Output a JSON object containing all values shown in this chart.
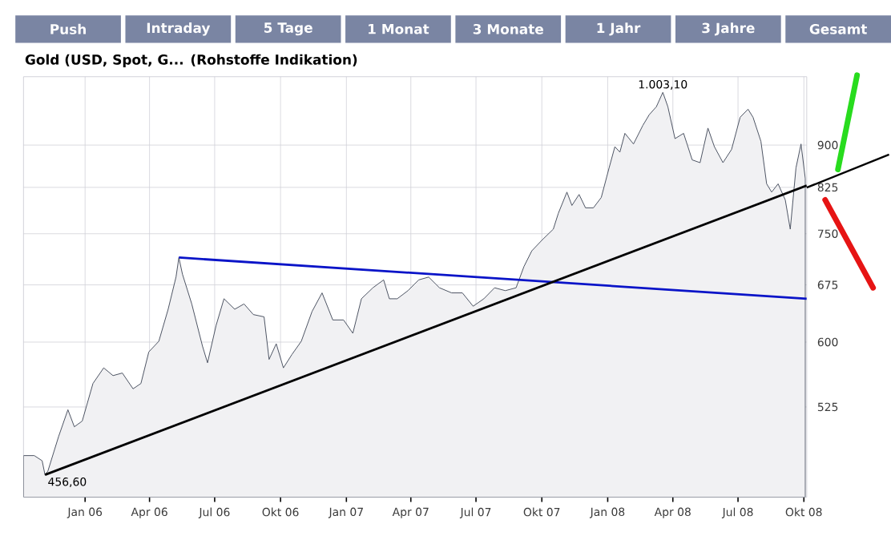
{
  "chart_data": {
    "type": "area",
    "title": "Gold (USD, Spot, G... (Rohstoffe Indikation)",
    "annotations": [
      "Push",
      "Intraday",
      "5 Tage",
      "1 Monat",
      "3 Monate",
      "1 Jahr",
      "3 Jahre",
      "Gesamt",
      {
        "text": "1.003,10",
        "x": "2008-03-18",
        "y": 1003.1
      },
      {
        "text": "456,60",
        "x": "2005-11-06",
        "y": 456.6
      }
    ],
    "log": "y",
    "grid": true,
    "xlim": [
      "2005-10-07",
      "2008-10-05"
    ],
    "ylim": [
      436,
      1036
    ],
    "xticks": [
      {
        "value": "2006-01-01",
        "label": "Jan 06"
      },
      {
        "value": "2006-04-01",
        "label": "Apr 06"
      },
      {
        "value": "2006-07-01",
        "label": "Jul 06"
      },
      {
        "value": "2006-10-01",
        "label": "Okt 06"
      },
      {
        "value": "2007-01-01",
        "label": "Jan 07"
      },
      {
        "value": "2007-04-01",
        "label": "Apr 07"
      },
      {
        "value": "2007-07-01",
        "label": "Jul 07"
      },
      {
        "value": "2007-10-01",
        "label": "Okt 07"
      },
      {
        "value": "2008-01-01",
        "label": "Jan 08"
      },
      {
        "value": "2008-04-01",
        "label": "Apr 08"
      },
      {
        "value": "2008-07-01",
        "label": "Jul 08"
      },
      {
        "value": "2008-10-01",
        "label": "Okt 08"
      }
    ],
    "yticks": [
      525,
      600,
      675,
      750,
      825,
      900
    ],
    "series": [
      {
        "color": "#4d5463",
        "x": [
          "2005-10-07",
          "2005-10-22",
          "2005-11-02",
          "2005-11-06",
          "2005-11-10",
          "2005-11-25",
          "2005-12-08",
          "2005-12-17",
          "2005-12-28",
          "2006-01-12",
          "2006-01-27",
          "2006-02-09",
          "2006-02-22",
          "2006-03-09",
          "2006-03-20",
          "2006-03-31",
          "2006-04-14",
          "2006-04-27",
          "2006-05-08",
          "2006-05-12",
          "2006-05-17",
          "2006-05-30",
          "2006-06-14",
          "2006-06-21",
          "2006-07-03",
          "2006-07-14",
          "2006-07-29",
          "2006-08-11",
          "2006-08-24",
          "2006-09-08",
          "2006-09-15",
          "2006-09-25",
          "2006-10-05",
          "2006-10-17",
          "2006-10-30",
          "2006-11-14",
          "2006-11-28",
          "2006-12-13",
          "2006-12-28",
          "2007-01-10",
          "2007-01-22",
          "2007-02-07",
          "2007-02-22",
          "2007-03-02",
          "2007-03-13",
          "2007-03-28",
          "2007-04-12",
          "2007-04-26",
          "2007-05-11",
          "2007-05-28",
          "2007-06-12",
          "2007-06-27",
          "2007-07-12",
          "2007-07-27",
          "2007-08-11",
          "2007-08-26",
          "2007-09-06",
          "2007-09-17",
          "2007-10-02",
          "2007-10-17",
          "2007-10-24",
          "2007-11-05",
          "2007-11-12",
          "2007-11-22",
          "2007-12-01",
          "2007-12-12",
          "2007-12-23",
          "2008-01-03",
          "2008-01-11",
          "2008-01-18",
          "2008-01-25",
          "2008-02-06",
          "2008-02-19",
          "2008-02-28",
          "2008-03-09",
          "2008-03-18",
          "2008-03-25",
          "2008-04-04",
          "2008-04-16",
          "2008-04-28",
          "2008-05-09",
          "2008-05-20",
          "2008-05-29",
          "2008-06-10",
          "2008-06-22",
          "2008-07-04",
          "2008-07-15",
          "2008-07-22",
          "2008-08-02",
          "2008-08-10",
          "2008-08-17",
          "2008-08-26",
          "2008-09-05",
          "2008-09-12",
          "2008-09-20",
          "2008-09-27",
          "2008-10-03"
        ],
        "values": [
          475,
          475,
          470,
          456.6,
          460,
          494,
          522,
          504,
          510,
          551,
          569,
          560,
          563,
          545,
          551,
          588,
          601,
          642,
          686,
          714,
          690,
          649,
          595,
          575,
          621,
          656,
          642,
          649,
          635,
          632,
          579,
          598,
          569,
          585,
          601,
          639,
          664,
          628,
          628,
          611,
          656,
          671,
          682,
          656,
          656,
          667,
          682,
          686,
          671,
          664,
          664,
          646,
          656,
          671,
          667,
          671,
          701,
          724,
          741,
          757,
          782,
          817,
          795,
          813,
          791,
          791,
          808,
          859,
          897,
          887,
          922,
          902,
          937,
          958,
          974,
          1003.1,
          974,
          912,
          922,
          873,
          868,
          932,
          897,
          868,
          892,
          953,
          969,
          953,
          907,
          831,
          817,
          831,
          804,
          757,
          859,
          902,
          840
        ]
      },
      {
        "type": "line",
        "color": "#0a14c8",
        "x": [
          "2006-05-12",
          "2008-10-05"
        ],
        "values": [
          714,
          656
        ]
      },
      {
        "type": "line",
        "color": "#000000",
        "x": [
          "2005-11-06",
          "2008-10-05"
        ],
        "values": [
          456.6,
          828
        ]
      }
    ]
  }
}
